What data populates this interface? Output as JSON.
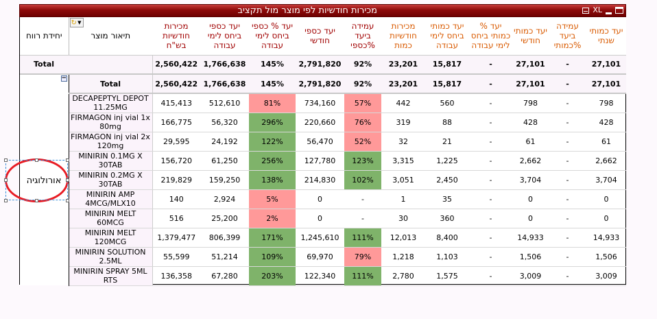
{
  "window": {
    "title": "מכירות חודשיות לפי מוצר מול תקציב",
    "controls": [
      {
        "name": "print-icon"
      },
      {
        "name": "xl-export",
        "label": "XL"
      },
      {
        "name": "minimize-icon"
      },
      {
        "name": "maximize-icon"
      }
    ]
  },
  "columns": [
    {
      "key": "unit",
      "label": "יחידת רווח",
      "color": "black"
    },
    {
      "key": "desc",
      "label": "תיאור מוצר",
      "color": "black"
    },
    {
      "key": "sales_nis",
      "label": "מכירות חודשיות בש\"ח",
      "color": "red"
    },
    {
      "key": "target_nis_wd",
      "label": "יעד כספי ביחס לימי עבודה",
      "color": "red"
    },
    {
      "key": "pct_target_nis",
      "label": "יעד % כספי ביחס לימי עבודה",
      "color": "red"
    },
    {
      "key": "target_nis_month",
      "label": "יעד כספי חודשי",
      "color": "red"
    },
    {
      "key": "achv_nis",
      "label": "עמידה ביעד %כספי",
      "color": "red"
    },
    {
      "key": "sales_qty",
      "label": "מכירות חודשיות כמות",
      "color": "orange"
    },
    {
      "key": "target_qty_wd",
      "label": "יעד כמותי ביחס לימי עבודה",
      "color": "orange"
    },
    {
      "key": "pct_target_qty",
      "label": "יעד % כמותי ביחס לימי עבודה",
      "color": "orange"
    },
    {
      "key": "target_qty_month",
      "label": "יעד כמותי חודשי",
      "color": "orange"
    },
    {
      "key": "achv_qty",
      "label": "עמידה ביעד %כמותי",
      "color": "orange"
    },
    {
      "key": "target_qty_year",
      "label": "יעד כמותי שנתי",
      "color": "orange"
    }
  ],
  "grand_total": {
    "label": "Total",
    "values": [
      "2,560,422",
      "1,766,638",
      "145%",
      "2,791,820",
      "92%",
      "23,201",
      "15,817",
      "-",
      "27,101",
      "-",
      "27,101"
    ],
    "status": [
      "",
      "",
      "green",
      "",
      "yellow",
      "",
      "",
      "",
      "",
      "",
      ""
    ]
  },
  "group": {
    "unit_label": "אורולוגיה",
    "subtotal": {
      "label": "Total",
      "values": [
        "2,560,422",
        "1,766,638",
        "145%",
        "2,791,820",
        "92%",
        "23,201",
        "15,817",
        "-",
        "27,101",
        "-",
        "27,101"
      ],
      "status": [
        "",
        "",
        "green",
        "",
        "yellow",
        "",
        "",
        "",
        "",
        "",
        ""
      ]
    },
    "rows": [
      {
        "desc": "DECAPEPTYL DEPOT 11.25MG",
        "values": [
          "415,413",
          "512,610",
          "81%",
          "734,160",
          "57%",
          "442",
          "560",
          "-",
          "798",
          "-",
          "798"
        ],
        "status": [
          "",
          "",
          "red",
          "",
          "red",
          "",
          "",
          "",
          "",
          "",
          ""
        ]
      },
      {
        "desc": "FIRMAGON inj vial 1x 80mg",
        "values": [
          "166,775",
          "56,320",
          "296%",
          "220,660",
          "76%",
          "319",
          "88",
          "-",
          "428",
          "-",
          "428"
        ],
        "status": [
          "",
          "",
          "green",
          "",
          "red",
          "",
          "",
          "",
          "",
          "",
          ""
        ]
      },
      {
        "desc": "FIRMAGON inj vial 2x 120mg",
        "values": [
          "29,595",
          "24,192",
          "122%",
          "56,470",
          "52%",
          "32",
          "21",
          "-",
          "61",
          "-",
          "61"
        ],
        "status": [
          "",
          "",
          "green",
          "",
          "red",
          "",
          "",
          "",
          "",
          "",
          ""
        ]
      },
      {
        "desc": "MINIRIN 0.1MG X 30TAB",
        "values": [
          "156,720",
          "61,250",
          "256%",
          "127,780",
          "123%",
          "3,315",
          "1,225",
          "-",
          "2,662",
          "-",
          "2,662"
        ],
        "status": [
          "",
          "",
          "green",
          "",
          "green",
          "",
          "",
          "",
          "",
          "",
          ""
        ]
      },
      {
        "desc": "MINIRIN 0.2MG X 30TAB",
        "values": [
          "219,829",
          "159,250",
          "138%",
          "214,830",
          "102%",
          "3,051",
          "2,450",
          "-",
          "3,704",
          "-",
          "3,704"
        ],
        "status": [
          "",
          "",
          "green",
          "",
          "green",
          "",
          "",
          "",
          "",
          "",
          ""
        ]
      },
      {
        "desc": "MINIRIN AMP 4MCG/MLX10",
        "values": [
          "140",
          "2,924",
          "5%",
          "0",
          "-",
          "1",
          "35",
          "-",
          "0",
          "-",
          "0"
        ],
        "status": [
          "",
          "",
          "red",
          "",
          "",
          "",
          "",
          "",
          "",
          "",
          ""
        ]
      },
      {
        "desc": "MINIRIN MELT 60MCG",
        "values": [
          "516",
          "25,200",
          "2%",
          "0",
          "-",
          "30",
          "360",
          "-",
          "0",
          "-",
          "0"
        ],
        "status": [
          "",
          "",
          "red",
          "",
          "",
          "",
          "",
          "",
          "",
          "",
          ""
        ]
      },
      {
        "desc": "MINIRIN MELT 120MCG",
        "values": [
          "1,379,477",
          "806,399",
          "171%",
          "1,245,610",
          "111%",
          "12,013",
          "8,400",
          "-",
          "14,933",
          "-",
          "14,933"
        ],
        "status": [
          "",
          "",
          "green",
          "",
          "green",
          "",
          "",
          "",
          "",
          "",
          ""
        ]
      },
      {
        "desc": "MINIRIN SOLUTION 2.5ML",
        "values": [
          "55,599",
          "51,214",
          "109%",
          "69,970",
          "79%",
          "1,218",
          "1,103",
          "-",
          "1,506",
          "-",
          "1,506"
        ],
        "status": [
          "",
          "",
          "green",
          "",
          "red",
          "",
          "",
          "",
          "",
          "",
          ""
        ]
      },
      {
        "desc": "MINIRIN SPRAY 5ML RTS",
        "values": [
          "136,358",
          "67,280",
          "203%",
          "122,340",
          "111%",
          "2,780",
          "1,575",
          "-",
          "3,009",
          "-",
          "3,009"
        ],
        "status": [
          "",
          "",
          "green",
          "",
          "green",
          "",
          "",
          "",
          "",
          "",
          ""
        ]
      }
    ]
  },
  "annotation": {
    "type": "red-ellipse",
    "target": "אורולוגיה"
  }
}
